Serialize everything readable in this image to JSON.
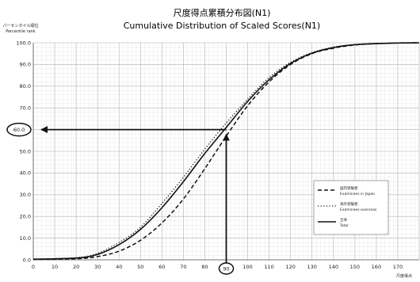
{
  "chart_data": {
    "type": "line",
    "title": "尺度得点累積分布図(N1)",
    "subtitle": "Cumulative Distribution of Scaled Scores(N1)",
    "ylabel_ja": "パーセンタイル順位",
    "ylabel_en": "Percentile rank",
    "xlabel_ja": "尺度得点",
    "xlim": [
      0,
      180
    ],
    "ylim": [
      0,
      100
    ],
    "xticks": [
      "0",
      "10",
      "20",
      "30",
      "40",
      "50",
      "60",
      "70",
      "80",
      "90",
      "100",
      "110",
      "120",
      "130",
      "140",
      "150",
      "160",
      "170"
    ],
    "yticks": [
      "0.0",
      "10.0",
      "20.0",
      "30.0",
      "40.0",
      "50.0",
      "60.0",
      "70.0",
      "80.0",
      "90.0",
      "100.0"
    ],
    "grid": true,
    "legend_position": "right",
    "series": [
      {
        "name_ja": "国内受験者",
        "name_en": "Examinees in Japan",
        "style": "dashed",
        "x": [
          0,
          20,
          30,
          40,
          50,
          60,
          70,
          80,
          90,
          100,
          110,
          120,
          130,
          140,
          150,
          160,
          170,
          180
        ],
        "y": [
          0.2,
          0.5,
          1.5,
          4,
          9,
          17,
          28,
          42,
          57,
          71,
          82,
          90,
          95,
          97.5,
          99,
          99.6,
          99.9,
          100
        ]
      },
      {
        "name_ja": "海外受験者",
        "name_en": "Examinees overseas",
        "style": "dash-dot",
        "x": [
          0,
          20,
          30,
          40,
          50,
          60,
          70,
          80,
          90,
          100,
          110,
          120,
          130,
          140,
          150,
          160,
          170,
          180
        ],
        "y": [
          0.3,
          1,
          3,
          8,
          15,
          26,
          38,
          51,
          63,
          74,
          84,
          91,
          95.5,
          98,
          99.2,
          99.7,
          99.9,
          100
        ]
      },
      {
        "name_ja": "全体",
        "name_en": "Total",
        "style": "solid",
        "x": [
          0,
          20,
          30,
          40,
          50,
          60,
          70,
          80,
          90,
          100,
          110,
          120,
          130,
          140,
          150,
          160,
          170,
          180
        ],
        "y": [
          0.3,
          0.8,
          2.5,
          7,
          14,
          24,
          36,
          49,
          61,
          73,
          83,
          90.5,
          95.2,
          97.8,
          99.1,
          99.6,
          99.9,
          100
        ]
      }
    ],
    "annotation": {
      "x_value": 90,
      "y_value": 60,
      "x_label": "90",
      "y_label": "60.0"
    }
  }
}
